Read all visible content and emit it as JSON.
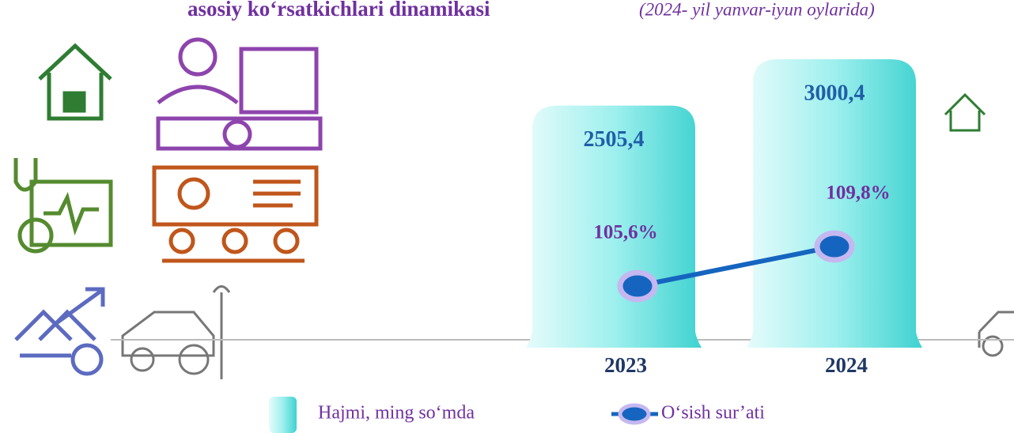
{
  "chart_data": {
    "type": "bar-line",
    "title": "asosiy ko‘rsatkichlari dinamikasi",
    "subtitle": "(2024- yil yanvar-iyun oylarida)",
    "categories": [
      "2023",
      "2024"
    ],
    "series": [
      {
        "name": "Hajmi, ming so‘mda",
        "type": "bar",
        "color": "#7fe3e3",
        "values": [
          2505.4,
          3000.4
        ],
        "value_labels": [
          "2505,4",
          "3000,4"
        ]
      },
      {
        "name": "O‘sish sur’ati",
        "type": "line",
        "color": "#1565c0",
        "values": [
          105.6,
          109.8
        ],
        "value_labels": [
          "105,6%",
          "109,8%"
        ]
      }
    ]
  }
}
